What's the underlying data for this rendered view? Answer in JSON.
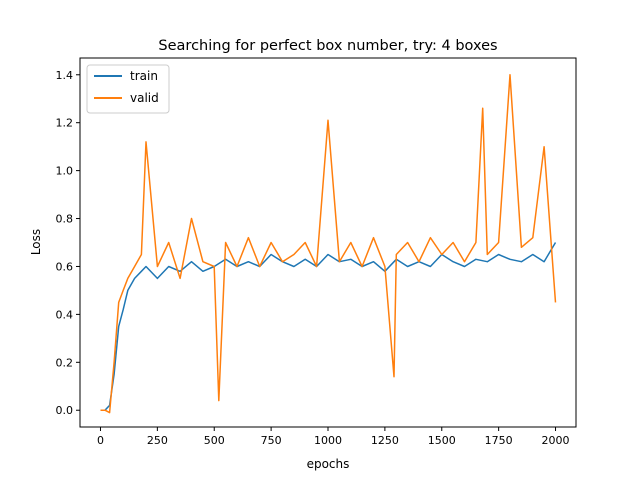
{
  "chart_data": {
    "type": "line",
    "title": "Searching for perfect box number, try: 4 boxes",
    "xlabel": "epochs",
    "ylabel": "Loss",
    "xlim": [
      -90,
      2090
    ],
    "ylim": [
      -0.07,
      1.47
    ],
    "xticks": [
      0,
      250,
      500,
      750,
      1000,
      1250,
      1500,
      1750,
      2000
    ],
    "xtick_labels": [
      "0",
      "250",
      "500",
      "750",
      "1000",
      "1250",
      "1500",
      "1750",
      "2000"
    ],
    "yticks": [
      0.0,
      0.2,
      0.4,
      0.6,
      0.8,
      1.0,
      1.2,
      1.4
    ],
    "ytick_labels": [
      "0.0",
      "0.2",
      "0.4",
      "0.6",
      "0.8",
      "1.0",
      "1.2",
      "1.4"
    ],
    "grid": false,
    "legend_position": "upper-left",
    "series": [
      {
        "name": "train",
        "color": "#1f77b4",
        "x": [
          0,
          20,
          40,
          60,
          80,
          100,
          120,
          150,
          180,
          200,
          250,
          300,
          350,
          400,
          450,
          500,
          550,
          600,
          650,
          700,
          750,
          800,
          850,
          900,
          950,
          1000,
          1050,
          1100,
          1150,
          1200,
          1250,
          1300,
          1350,
          1400,
          1450,
          1500,
          1550,
          1600,
          1650,
          1700,
          1750,
          1800,
          1850,
          1900,
          1950,
          2000
        ],
        "y": [
          0.0,
          0.0,
          0.02,
          0.15,
          0.35,
          0.42,
          0.5,
          0.55,
          0.58,
          0.6,
          0.55,
          0.6,
          0.58,
          0.62,
          0.58,
          0.6,
          0.63,
          0.6,
          0.62,
          0.6,
          0.65,
          0.62,
          0.6,
          0.63,
          0.6,
          0.65,
          0.62,
          0.63,
          0.6,
          0.62,
          0.58,
          0.63,
          0.6,
          0.62,
          0.6,
          0.65,
          0.62,
          0.6,
          0.63,
          0.62,
          0.65,
          0.63,
          0.62,
          0.65,
          0.62,
          0.7
        ]
      },
      {
        "name": "valid",
        "color": "#ff7f0e",
        "x": [
          0,
          20,
          40,
          60,
          80,
          100,
          120,
          150,
          180,
          200,
          250,
          300,
          350,
          400,
          450,
          500,
          520,
          550,
          600,
          650,
          700,
          750,
          800,
          850,
          900,
          950,
          1000,
          1050,
          1100,
          1150,
          1200,
          1250,
          1290,
          1300,
          1350,
          1400,
          1450,
          1500,
          1550,
          1600,
          1650,
          1680,
          1700,
          1750,
          1800,
          1850,
          1900,
          1950,
          2000
        ],
        "y": [
          0.0,
          0.0,
          -0.01,
          0.2,
          0.45,
          0.5,
          0.55,
          0.6,
          0.65,
          1.12,
          0.6,
          0.7,
          0.55,
          0.8,
          0.62,
          0.6,
          0.04,
          0.7,
          0.6,
          0.72,
          0.6,
          0.7,
          0.62,
          0.65,
          0.7,
          0.6,
          1.21,
          0.62,
          0.7,
          0.6,
          0.72,
          0.6,
          0.14,
          0.65,
          0.7,
          0.62,
          0.72,
          0.65,
          0.7,
          0.62,
          0.7,
          1.26,
          0.65,
          0.7,
          1.4,
          0.68,
          0.72,
          1.1,
          0.45
        ]
      }
    ]
  }
}
